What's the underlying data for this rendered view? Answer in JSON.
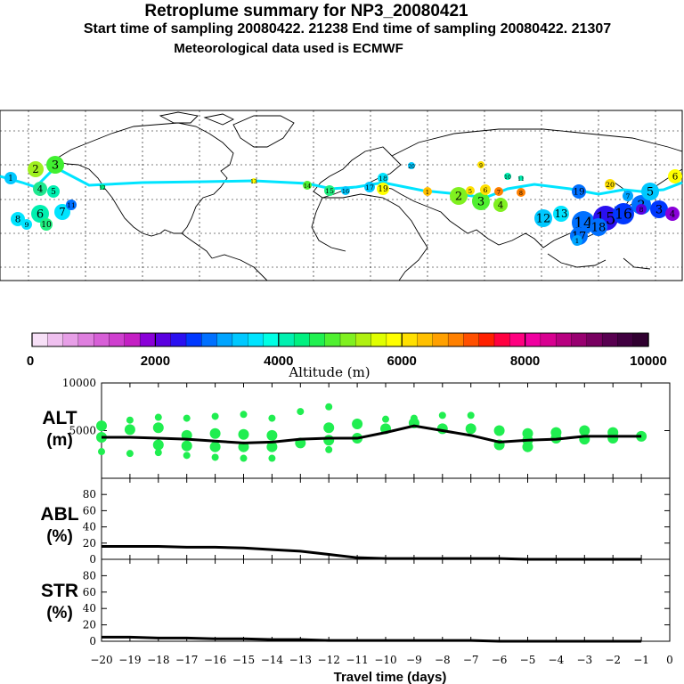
{
  "header": {
    "title": "Retroplume summary for NP3_20080421",
    "sampling": "Start time of sampling 20080422. 21238     End time of sampling 20080422. 21307",
    "met": "Meteorological data used is ECMWF"
  },
  "colorbar": {
    "ticks": [
      "0",
      "2000",
      "4000",
      "6000",
      "8000",
      "10000"
    ],
    "label": "Altitude (m)",
    "colors": [
      "#f7e0f7",
      "#efc0ef",
      "#e79fe7",
      "#df7fdf",
      "#d75fd7",
      "#cf3fcf",
      "#c41fc4",
      "#8a00d8",
      "#5a00e0",
      "#2a10f0",
      "#0038ff",
      "#0070ff",
      "#00a4ff",
      "#00c8ff",
      "#00e4ff",
      "#00ffe4",
      "#00f0b0",
      "#00f080",
      "#20f050",
      "#50f030",
      "#80f020",
      "#b0f010",
      "#e0ff00",
      "#ffff00",
      "#ffe000",
      "#ffc000",
      "#ffa000",
      "#ff8000",
      "#ff5000",
      "#ff2000",
      "#ff0040",
      "#ff0080",
      "#f000a0",
      "#d80090",
      "#b80080",
      "#980070",
      "#780060",
      "#580050",
      "#400040",
      "#300030"
    ]
  },
  "map_labels": [
    "1",
    "2",
    "3",
    "4",
    "5",
    "6",
    "7",
    "8",
    "9",
    "10",
    "11",
    "12",
    "13",
    "14",
    "15",
    "16",
    "17",
    "18",
    "19",
    "20"
  ],
  "panels": {
    "alt": {
      "label1": "ALT",
      "label2": "(m)"
    },
    "abl": {
      "label1": "ABL",
      "label2": "(%)"
    },
    "str": {
      "label1": "STR",
      "label2": "(%)"
    }
  },
  "xaxis": {
    "label": "Travel time (days)"
  },
  "chart_data": [
    {
      "type": "line",
      "name": "ALT",
      "ylabel": "(m)",
      "ylim": [
        0,
        10000
      ],
      "yticks": [
        5000,
        10000
      ],
      "x": [
        -20,
        -19,
        -18,
        -17,
        -16,
        -15,
        -14,
        -13,
        -12,
        -11,
        -10,
        -9,
        -8,
        -7,
        -6,
        -5,
        -4,
        -3,
        -2,
        -1
      ],
      "median": [
        4300,
        4300,
        4200,
        4100,
        3900,
        3700,
        3800,
        4100,
        4200,
        4200,
        4800,
        5500,
        5000,
        4500,
        3800,
        4000,
        4100,
        4400,
        4400,
        4400
      ],
      "xticks": [
        -20,
        -19,
        -18,
        -17,
        -16,
        -15,
        -14,
        -13,
        -12,
        -11,
        -10,
        -9,
        -8,
        -7,
        -6,
        -5,
        -4,
        -3,
        -2,
        -1,
        0
      ],
      "xlabel": "Travel time (days)",
      "particle_color": "#20ee50",
      "particles": [
        [
          -20,
          5500
        ],
        [
          -20,
          4300
        ],
        [
          -20,
          2800
        ],
        [
          -19,
          6100
        ],
        [
          -19,
          5100
        ],
        [
          -19,
          2600
        ],
        [
          -18,
          6400
        ],
        [
          -18,
          5300
        ],
        [
          -18,
          3500
        ],
        [
          -18,
          2700
        ],
        [
          -17,
          6300
        ],
        [
          -17,
          4500
        ],
        [
          -17,
          3400
        ],
        [
          -17,
          2400
        ],
        [
          -16,
          6500
        ],
        [
          -16,
          4700
        ],
        [
          -16,
          3300
        ],
        [
          -16,
          2200
        ],
        [
          -15,
          6700
        ],
        [
          -15,
          4600
        ],
        [
          -15,
          3300
        ],
        [
          -15,
          2100
        ],
        [
          -14,
          6300
        ],
        [
          -14,
          4500
        ],
        [
          -14,
          3300
        ],
        [
          -14,
          2100
        ],
        [
          -13,
          7000
        ],
        [
          -13,
          3700
        ],
        [
          -12,
          7500
        ],
        [
          -12,
          5300
        ],
        [
          -12,
          4000
        ],
        [
          -12,
          3000
        ],
        [
          -11,
          5700
        ],
        [
          -11,
          4200
        ],
        [
          -10,
          6200
        ],
        [
          -10,
          5200
        ],
        [
          -9,
          6300
        ],
        [
          -9,
          5800
        ],
        [
          -8,
          6600
        ],
        [
          -8,
          5200
        ],
        [
          -7,
          6600
        ],
        [
          -7,
          5200
        ],
        [
          -6,
          5000
        ],
        [
          -6,
          3500
        ],
        [
          -5,
          4700
        ],
        [
          -5,
          4000
        ],
        [
          -5,
          3300
        ],
        [
          -4,
          4800
        ],
        [
          -4,
          4200
        ],
        [
          -3,
          5000
        ],
        [
          -3,
          4100
        ],
        [
          -2,
          4800
        ],
        [
          -2,
          4200
        ],
        [
          -1,
          4400
        ]
      ]
    },
    {
      "type": "line",
      "name": "ABL",
      "ylabel": "(%)",
      "ylim": [
        0,
        100
      ],
      "yticks": [
        0,
        20,
        40,
        60,
        80
      ],
      "x": [
        -20,
        -19,
        -18,
        -17,
        -16,
        -15,
        -14,
        -13,
        -12,
        -11,
        -10,
        -9,
        -8,
        -7,
        -6,
        -5,
        -4,
        -3,
        -2,
        -1
      ],
      "values": [
        16,
        16,
        16,
        15,
        15,
        14,
        12,
        10,
        6,
        2,
        1,
        1,
        1,
        1,
        1,
        0,
        0,
        0,
        0,
        0
      ]
    },
    {
      "type": "line",
      "name": "STR",
      "ylabel": "(%)",
      "ylim": [
        0,
        100
      ],
      "yticks": [
        0,
        20,
        40,
        60,
        80
      ],
      "x": [
        -20,
        -19,
        -18,
        -17,
        -16,
        -15,
        -14,
        -13,
        -12,
        -11,
        -10,
        -9,
        -8,
        -7,
        -6,
        -5,
        -4,
        -3,
        -2,
        -1
      ],
      "values": [
        5,
        5,
        4,
        4,
        3,
        3,
        2,
        2,
        1,
        1,
        1,
        1,
        1,
        1,
        0,
        0,
        0,
        0,
        0,
        0
      ]
    }
  ]
}
